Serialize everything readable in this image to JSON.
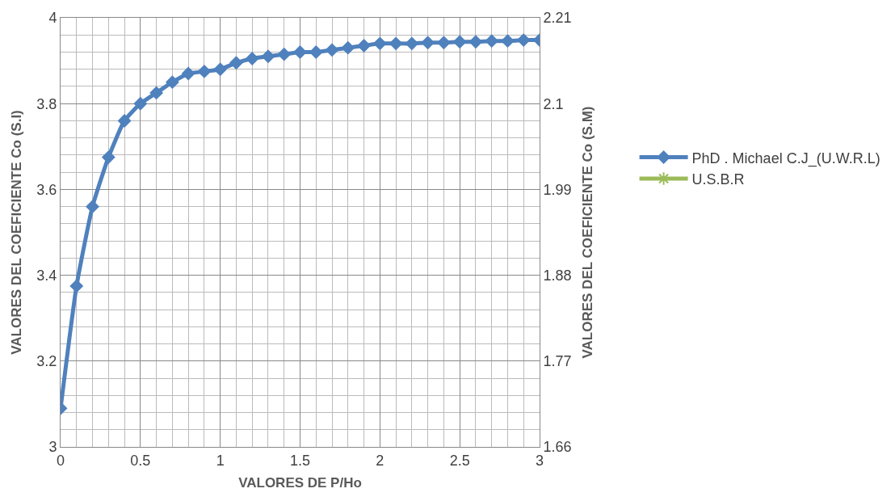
{
  "chart_data": {
    "type": "line",
    "xlabel": "VALORES DE P/Ho",
    "ylabel": "VALORES DEL COEFICIENTE Co (S.I)",
    "y2label": "VALORES DEL COEFICIENTE Co (S.M)",
    "x": [
      0,
      0.1,
      0.2,
      0.3,
      0.4,
      0.5,
      0.6,
      0.7,
      0.8,
      0.9,
      1.0,
      1.1,
      1.2,
      1.3,
      1.4,
      1.5,
      1.6,
      1.7,
      1.8,
      1.9,
      2.0,
      2.1,
      2.2,
      2.3,
      2.4,
      2.5,
      2.6,
      2.7,
      2.8,
      2.9,
      3.0
    ],
    "series": [
      {
        "name": "PhD . Michael C.J_(U.W.R.L)",
        "color": "#4f81bd",
        "marker": "diamond",
        "values": [
          3.09,
          3.375,
          3.56,
          3.675,
          3.76,
          3.8,
          3.825,
          3.85,
          3.87,
          3.875,
          3.88,
          3.895,
          3.905,
          3.91,
          3.915,
          3.92,
          3.92,
          3.925,
          3.93,
          3.935,
          3.94,
          3.94,
          3.94,
          3.942,
          3.942,
          3.944,
          3.944,
          3.946,
          3.946,
          3.948,
          3.948
        ]
      },
      {
        "name": "U.S.B.R",
        "color": "#9bbb59",
        "marker": "star",
        "axis": "y2",
        "values": [
          null,
          null,
          null,
          null,
          null,
          null,
          null,
          null,
          null,
          null,
          null,
          null,
          null,
          null,
          null,
          null,
          null,
          null,
          null,
          null,
          null,
          null,
          null,
          null,
          null,
          null,
          null,
          null,
          null,
          null,
          null
        ]
      }
    ],
    "xlim": [
      0,
      3
    ],
    "xticks": [
      0,
      0.5,
      1,
      1.5,
      2,
      2.5,
      3
    ],
    "ylim": [
      3,
      4
    ],
    "yticks": [
      3,
      3.2,
      3.4,
      3.6,
      3.8,
      4
    ],
    "y2lim": [
      1.66,
      2.21
    ],
    "y2ticks": [
      1.66,
      1.77,
      1.88,
      1.99,
      2.1,
      2.21
    ],
    "grid": true,
    "legend": "right",
    "line_style": "solid"
  }
}
